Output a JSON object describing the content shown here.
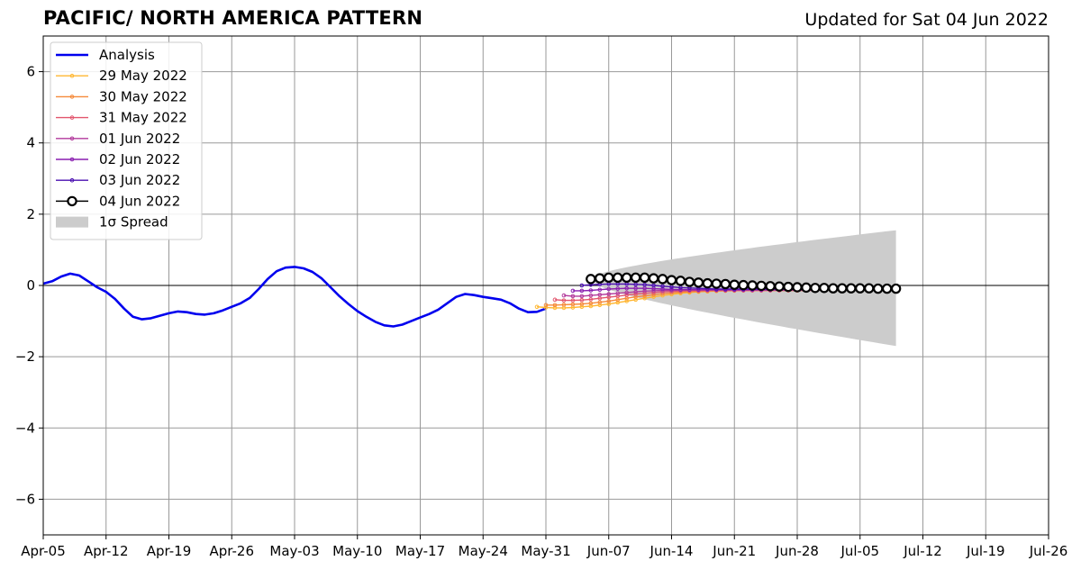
{
  "header": {
    "title": "PACIFIC/ NORTH AMERICA PATTERN",
    "subtitle": "Updated for Sat 04 Jun 2022"
  },
  "chart_data": {
    "type": "line",
    "title": "PACIFIC/ NORTH AMERICA PATTERN",
    "subtitle": "Updated for Sat 04 Jun 2022",
    "xlabel": "",
    "ylabel": "",
    "x_axis": {
      "start": "2022-04-05",
      "end": "2022-07-26",
      "tick_labels": [
        "Apr-05",
        "Apr-12",
        "Apr-19",
        "Apr-26",
        "May-03",
        "May-10",
        "May-17",
        "May-24",
        "May-31",
        "Jun-07",
        "Jun-14",
        "Jun-21",
        "Jun-28",
        "Jul-05",
        "Jul-12",
        "Jul-19",
        "Jul-26"
      ]
    },
    "ylim": [
      -7,
      7
    ],
    "y_ticks": [
      6,
      4,
      2,
      0,
      -2,
      -4,
      -6
    ],
    "y_tick_labels": [
      "6",
      "4",
      "2",
      "0",
      "−2",
      "−4",
      "−6"
    ],
    "grid": true,
    "legend_position": "top-left",
    "zero_line": true,
    "series": [
      {
        "name": "Analysis",
        "color": "#0000ee",
        "style": "thick-line",
        "start": "2022-04-05",
        "values": [
          0.05,
          0.12,
          0.25,
          0.33,
          0.28,
          0.12,
          -0.05,
          -0.18,
          -0.38,
          -0.65,
          -0.88,
          -0.95,
          -0.92,
          -0.85,
          -0.78,
          -0.73,
          -0.75,
          -0.8,
          -0.82,
          -0.78,
          -0.7,
          -0.6,
          -0.5,
          -0.35,
          -0.1,
          0.18,
          0.4,
          0.5,
          0.52,
          0.48,
          0.38,
          0.2,
          -0.05,
          -0.3,
          -0.52,
          -0.72,
          -0.88,
          -1.02,
          -1.12,
          -1.15,
          -1.1,
          -1.0,
          -0.9,
          -0.8,
          -0.68,
          -0.5,
          -0.32,
          -0.24,
          -0.27,
          -0.32,
          -0.36,
          -0.4,
          -0.5,
          -0.65,
          -0.75,
          -0.74,
          -0.65
        ]
      },
      {
        "name": "29 May 2022",
        "color": "#ffb732",
        "style": "small-marker",
        "start": "2022-05-30",
        "values": [
          -0.6,
          -0.62,
          -0.63,
          -0.63,
          -0.62,
          -0.6,
          -0.58,
          -0.55,
          -0.52,
          -0.48,
          -0.44,
          -0.4,
          -0.36,
          -0.32,
          -0.28,
          -0.25,
          -0.22,
          -0.2,
          -0.18,
          -0.17,
          -0.16,
          -0.15,
          -0.15,
          -0.14,
          -0.14,
          -0.14,
          -0.14,
          -0.14,
          -0.14,
          -0.14
        ]
      },
      {
        "name": "30 May 2022",
        "color": "#f58a3a",
        "style": "small-marker",
        "start": "2022-05-31",
        "values": [
          -0.55,
          -0.55,
          -0.54,
          -0.53,
          -0.52,
          -0.5,
          -0.47,
          -0.44,
          -0.4,
          -0.36,
          -0.32,
          -0.29,
          -0.26,
          -0.23,
          -0.21,
          -0.19,
          -0.18,
          -0.17,
          -0.16,
          -0.15,
          -0.15,
          -0.14,
          -0.14,
          -0.14,
          -0.14,
          -0.14,
          -0.14,
          -0.14,
          -0.14,
          -0.14
        ]
      },
      {
        "name": "31 May 2022",
        "color": "#e2566e",
        "style": "small-marker",
        "start": "2022-06-01",
        "values": [
          -0.4,
          -0.42,
          -0.42,
          -0.41,
          -0.39,
          -0.36,
          -0.33,
          -0.3,
          -0.27,
          -0.24,
          -0.22,
          -0.2,
          -0.18,
          -0.17,
          -0.16,
          -0.15,
          -0.15,
          -0.14,
          -0.14,
          -0.14,
          -0.14,
          -0.14,
          -0.14,
          -0.14,
          -0.14,
          -0.14,
          -0.14,
          -0.14,
          -0.14,
          -0.14
        ]
      },
      {
        "name": "01 Jun 2022",
        "color": "#b23a9c",
        "style": "small-marker",
        "start": "2022-06-02",
        "values": [
          -0.28,
          -0.3,
          -0.3,
          -0.28,
          -0.26,
          -0.24,
          -0.22,
          -0.2,
          -0.18,
          -0.16,
          -0.15,
          -0.14,
          -0.14,
          -0.13,
          -0.13,
          -0.13,
          -0.13,
          -0.13,
          -0.13,
          -0.13,
          -0.13,
          -0.13,
          -0.13,
          -0.13,
          -0.13,
          -0.13,
          -0.13,
          -0.13,
          -0.13,
          -0.13
        ]
      },
      {
        "name": "02 Jun 2022",
        "color": "#8a1fb0",
        "style": "small-marker",
        "start": "2022-06-03",
        "values": [
          -0.15,
          -0.15,
          -0.14,
          -0.12,
          -0.1,
          -0.09,
          -0.08,
          -0.08,
          -0.08,
          -0.09,
          -0.1,
          -0.11,
          -0.12,
          -0.12,
          -0.12,
          -0.12,
          -0.12,
          -0.12,
          -0.12,
          -0.12,
          -0.12,
          -0.12,
          -0.12,
          -0.12,
          -0.12,
          -0.12,
          -0.12,
          -0.12,
          -0.12,
          -0.12
        ]
      },
      {
        "name": "03 Jun 2022",
        "color": "#4a0fb0",
        "style": "small-marker",
        "start": "2022-06-04",
        "values": [
          0.0,
          0.02,
          0.03,
          0.04,
          0.04,
          0.04,
          0.03,
          0.02,
          0.0,
          -0.02,
          -0.04,
          -0.06,
          -0.07,
          -0.08,
          -0.09,
          -0.1,
          -0.1,
          -0.1,
          -0.1,
          -0.1,
          -0.1,
          -0.1,
          -0.1,
          -0.1,
          -0.1,
          -0.1,
          -0.1,
          -0.1,
          -0.1,
          -0.1
        ]
      },
      {
        "name": "04 Jun 2022",
        "color": "#000000",
        "style": "open-circle",
        "start": "2022-06-05",
        "values": [
          0.18,
          0.2,
          0.22,
          0.22,
          0.22,
          0.22,
          0.22,
          0.2,
          0.18,
          0.15,
          0.13,
          0.1,
          0.08,
          0.06,
          0.05,
          0.04,
          0.02,
          0.01,
          0.0,
          -0.01,
          -0.02,
          -0.03,
          -0.04,
          -0.05,
          -0.06,
          -0.07,
          -0.07,
          -0.08,
          -0.08,
          -0.08,
          -0.08,
          -0.08,
          -0.09,
          -0.09,
          -0.09
        ]
      }
    ],
    "spread": {
      "name": "1σ Spread",
      "color": "#cccccc",
      "start": "2022-06-05",
      "end": "2022-07-09",
      "upper_start": 0.18,
      "lower_start": 0.18,
      "upper_end": 1.55,
      "lower_end": -1.7
    },
    "legend": [
      {
        "label": "Analysis",
        "color": "#0000ee",
        "kind": "line"
      },
      {
        "label": "29 May 2022",
        "color": "#ffb732",
        "kind": "marker-line"
      },
      {
        "label": "30 May 2022",
        "color": "#f58a3a",
        "kind": "marker-line"
      },
      {
        "label": "31 May 2022",
        "color": "#e2566e",
        "kind": "marker-line"
      },
      {
        "label": "01 Jun 2022",
        "color": "#b23a9c",
        "kind": "marker-line"
      },
      {
        "label": "02 Jun 2022",
        "color": "#8a1fb0",
        "kind": "marker-line"
      },
      {
        "label": "03 Jun 2022",
        "color": "#4a0fb0",
        "kind": "marker-line"
      },
      {
        "label": "04 Jun 2022",
        "color": "#000000",
        "kind": "open-circle"
      },
      {
        "label": "1σ Spread",
        "color": "#cccccc",
        "kind": "patch"
      }
    ]
  }
}
